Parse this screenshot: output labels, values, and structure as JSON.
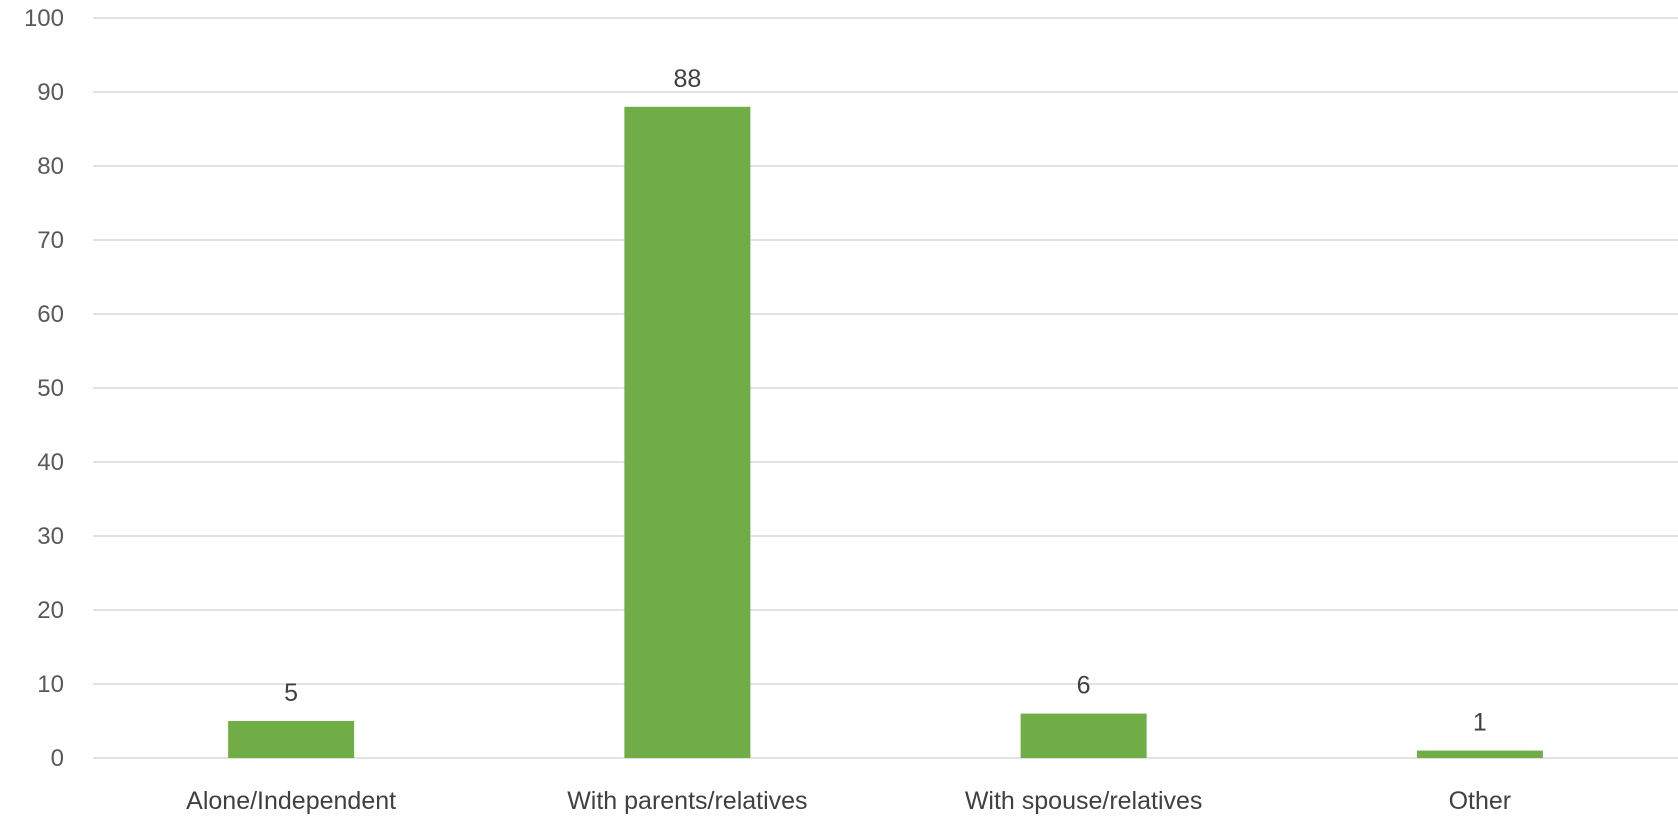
{
  "chart_data": {
    "type": "bar",
    "categories": [
      "Alone/Independent",
      "With parents/relatives",
      "With spouse/relatives",
      "Other"
    ],
    "values": [
      5,
      88,
      6,
      1
    ],
    "data_labels": [
      "5",
      "88",
      "6",
      "1"
    ],
    "yticks": [
      "0",
      "10",
      "20",
      "30",
      "40",
      "50",
      "60",
      "70",
      "80",
      "90",
      "100"
    ],
    "ylim": [
      0,
      100
    ],
    "grid": true,
    "legend": "none",
    "bar_color": "#70ad47",
    "grid_color": "#d9d9d9"
  }
}
